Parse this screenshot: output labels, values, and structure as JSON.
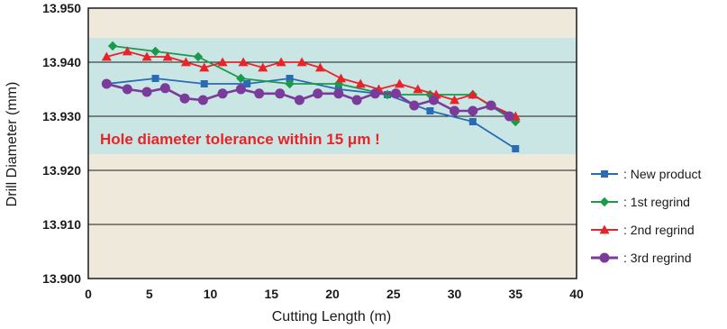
{
  "chart_data": {
    "type": "line",
    "xlabel": "Cutting Length (m)",
    "ylabel": "Drill Diameter (mm)",
    "xlim": [
      0,
      40
    ],
    "ylim": [
      13.9,
      13.95
    ],
    "xticks": [
      0,
      5,
      10,
      15,
      20,
      25,
      30,
      35,
      40
    ],
    "yticks": [
      13.9,
      13.91,
      13.92,
      13.93,
      13.94,
      13.95
    ],
    "ytick_labels": [
      "13.900",
      "13.910",
      "13.920",
      "13.930",
      "13.940",
      "13.950"
    ],
    "tolerance_band": [
      13.923,
      13.9445
    ],
    "annotation": "Hole diameter tolerance within 15 μm !",
    "grid": "horizontal",
    "legend": "right",
    "colors": {
      "plot_background": "#efe9dc",
      "tolerance_band": "#c9e6e4",
      "annotation": "#e8232a"
    },
    "series": [
      {
        "name": ": New product",
        "color": "#2a6bb5",
        "marker": "square",
        "x": [
          1.5,
          5.5,
          9.5,
          13,
          16.5,
          20.5,
          24.5,
          28,
          31.5,
          35
        ],
        "y": [
          13.936,
          13.937,
          13.936,
          13.936,
          13.937,
          13.935,
          13.934,
          13.931,
          13.929,
          13.924
        ]
      },
      {
        "name": ": 1st regrind",
        "color": "#1a9a4a",
        "marker": "diamond",
        "x": [
          2,
          5.5,
          9,
          12.5,
          16.5,
          20.5,
          24.5,
          28,
          31.5,
          35
        ],
        "y": [
          13.943,
          13.942,
          13.941,
          13.937,
          13.936,
          13.936,
          13.934,
          13.934,
          13.934,
          13.929
        ]
      },
      {
        "name": ": 2nd regrind",
        "color": "#e8232a",
        "marker": "triangle",
        "x": [
          1.5,
          3.2,
          4.8,
          6.5,
          8,
          9.5,
          11,
          12.7,
          14.3,
          15.8,
          17.5,
          19,
          20.7,
          22.3,
          23.8,
          25.5,
          27,
          28.5,
          30,
          31.5,
          33,
          35
        ],
        "y": [
          13.941,
          13.942,
          13.941,
          13.941,
          13.94,
          13.939,
          13.94,
          13.94,
          13.939,
          13.94,
          13.94,
          13.939,
          13.937,
          13.936,
          13.935,
          13.936,
          13.935,
          13.934,
          13.933,
          13.934,
          13.932,
          13.93
        ]
      },
      {
        "name": ": 3rd regrind",
        "color": "#7b3b9a",
        "marker": "circle",
        "x": [
          1.5,
          3.2,
          4.8,
          6.3,
          7.9,
          9.4,
          11,
          12.5,
          14,
          15.7,
          17.3,
          18.8,
          20.5,
          22,
          23.5,
          25.2,
          26.7,
          28.3,
          30,
          31.5,
          33,
          34.5
        ],
        "y": [
          13.936,
          13.935,
          13.9345,
          13.9352,
          13.9333,
          13.933,
          13.9342,
          13.935,
          13.9342,
          13.9342,
          13.933,
          13.9342,
          13.9342,
          13.933,
          13.9342,
          13.9342,
          13.932,
          13.933,
          13.931,
          13.931,
          13.932,
          13.93
        ]
      }
    ]
  }
}
